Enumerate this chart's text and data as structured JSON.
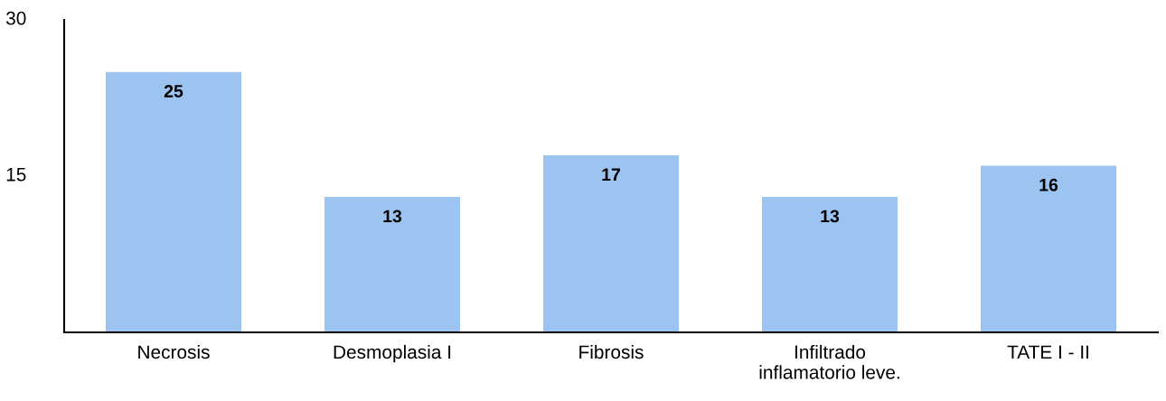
{
  "chart_data": {
    "type": "bar",
    "categories": [
      "Necrosis",
      "Desmoplasia I",
      "Fibrosis",
      "Infiltrado\ninflamatorio leve.",
      "TATE I - II"
    ],
    "values": [
      25,
      13,
      17,
      13,
      16
    ],
    "color": "#9dc3f0",
    "ylim": [
      0,
      30
    ],
    "yticks": [
      15,
      30
    ],
    "data_labels": true,
    "grid": false
  }
}
